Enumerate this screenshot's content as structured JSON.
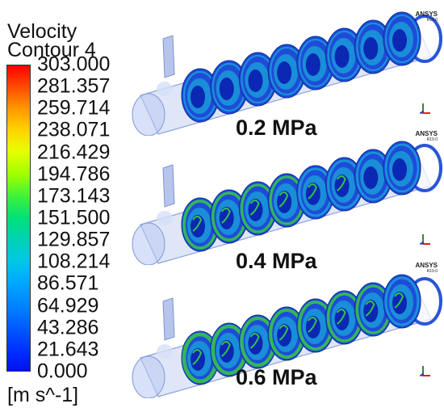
{
  "legend": {
    "title_line1": "Velocity",
    "title_line2": "Contour 4",
    "ticks": [
      "303.000",
      "281.357",
      "259.714",
      "238.071",
      "216.429",
      "194.786",
      "173.143",
      "151.500",
      "129.857",
      "108.214",
      "86.571",
      "64.929",
      "43.286",
      "21.643",
      "0.000"
    ],
    "unit": "[m s^-1]",
    "colormap": [
      "#ff0000",
      "#ff9600",
      "#e8ff00",
      "#3cf23c",
      "#00d2b4",
      "#00a8ff",
      "#005aff",
      "#0010f0"
    ]
  },
  "panels": [
    {
      "pressure": "0.2 MPa",
      "software": "ANSYS",
      "version": "R19.0"
    },
    {
      "pressure": "0.4 MPa",
      "software": "ANSYS",
      "version": "R19.0"
    },
    {
      "pressure": "0.6 MPa",
      "software": "ANSYS",
      "version": "R19.0"
    }
  ],
  "colors": {
    "pipe_wall": "#b8c8f0",
    "inlet_pipe": "#9fb2e6",
    "slice_outer": "#1e4cd8",
    "slice_ring": "#1a9ad8",
    "slice_green": "#35c24a",
    "slice_core": "#0a28b4"
  }
}
